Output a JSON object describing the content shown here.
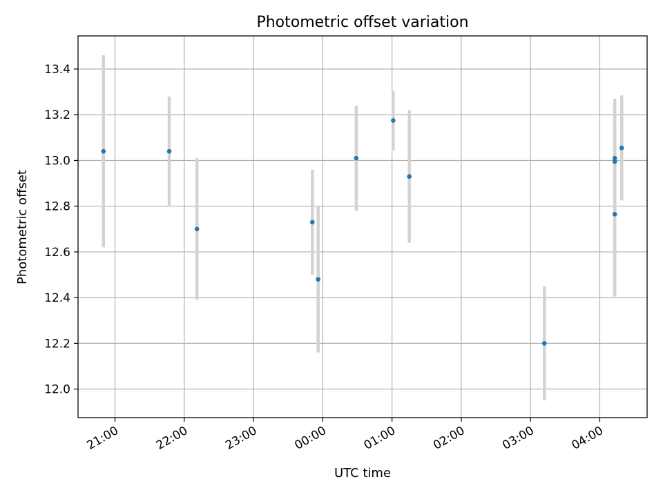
{
  "chart_data": {
    "type": "scatter",
    "title": "Photometric offset variation",
    "xlabel": "UTC time",
    "ylabel": "Photometric offset",
    "x_ticks": [
      "21:00",
      "22:00",
      "23:00",
      "00:00",
      "01:00",
      "02:00",
      "03:00",
      "04:00"
    ],
    "y_ticks": [
      "12.0",
      "12.2",
      "12.4",
      "12.6",
      "12.8",
      "13.0",
      "13.2",
      "13.4"
    ],
    "xlim": [
      "20:28",
      "04:41"
    ],
    "ylim": [
      11.875,
      13.545
    ],
    "grid": true,
    "marker_color": "#1f77b4",
    "errorbar_color": "#d3d3d3",
    "points": [
      {
        "time": "20:50",
        "y": 13.04,
        "yerr": 0.42
      },
      {
        "time": "21:47",
        "y": 13.04,
        "yerr": 0.24
      },
      {
        "time": "22:11",
        "y": 12.7,
        "yerr": 0.31
      },
      {
        "time": "23:51",
        "y": 12.73,
        "yerr": 0.23
      },
      {
        "time": "23:56",
        "y": 12.48,
        "yerr": 0.32
      },
      {
        "time": "00:29",
        "y": 13.01,
        "yerr": 0.23
      },
      {
        "time": "01:01",
        "y": 13.175,
        "yerr": 0.13
      },
      {
        "time": "01:15",
        "y": 12.93,
        "yerr": 0.29
      },
      {
        "time": "03:12",
        "y": 12.2,
        "yerr": 0.25
      },
      {
        "time": "04:13",
        "y": 12.765,
        "yerr": 0.36
      },
      {
        "time": "04:13",
        "y": 13.01,
        "yerr": 0.12
      },
      {
        "time": "04:13",
        "y": 12.995,
        "yerr": 0.275
      },
      {
        "time": "04:19",
        "y": 13.055,
        "yerr": 0.23
      }
    ]
  }
}
